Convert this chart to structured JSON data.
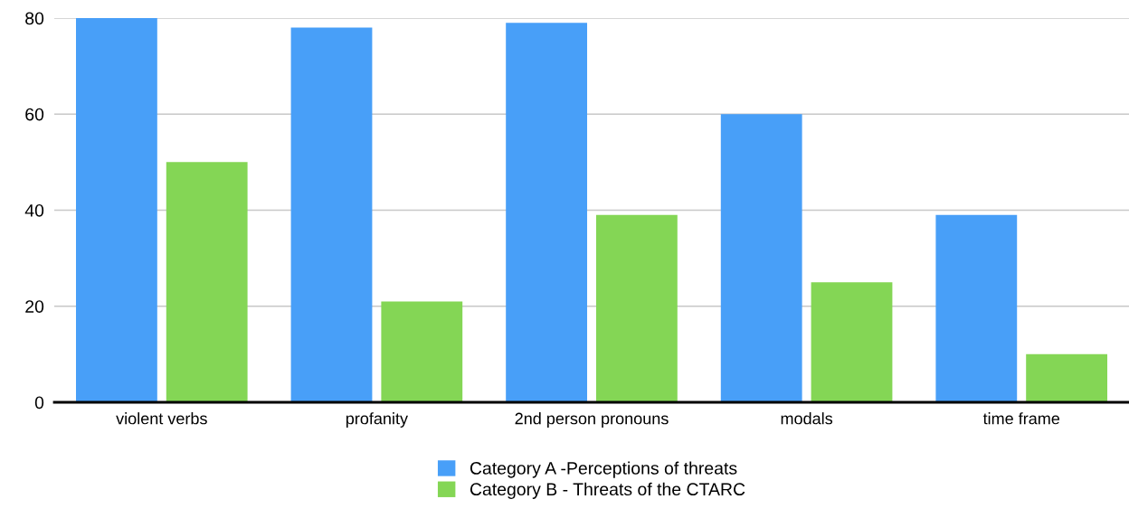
{
  "chart_data": {
    "type": "bar",
    "categories": [
      "violent verbs",
      "profanity",
      "2nd person pronouns",
      "modals",
      "time frame"
    ],
    "series": [
      {
        "name": "Category A -Perceptions of threats",
        "color": "#489ff8",
        "values": [
          80,
          78,
          79,
          60,
          39
        ]
      },
      {
        "name": "Category B - Threats of the CTARC",
        "color": "#84d655",
        "values": [
          50,
          21,
          39,
          25,
          10
        ]
      }
    ],
    "ylim": [
      0,
      80
    ],
    "yticks": [
      0,
      20,
      40,
      60,
      80
    ],
    "grid": "y",
    "legend": "bottom"
  }
}
